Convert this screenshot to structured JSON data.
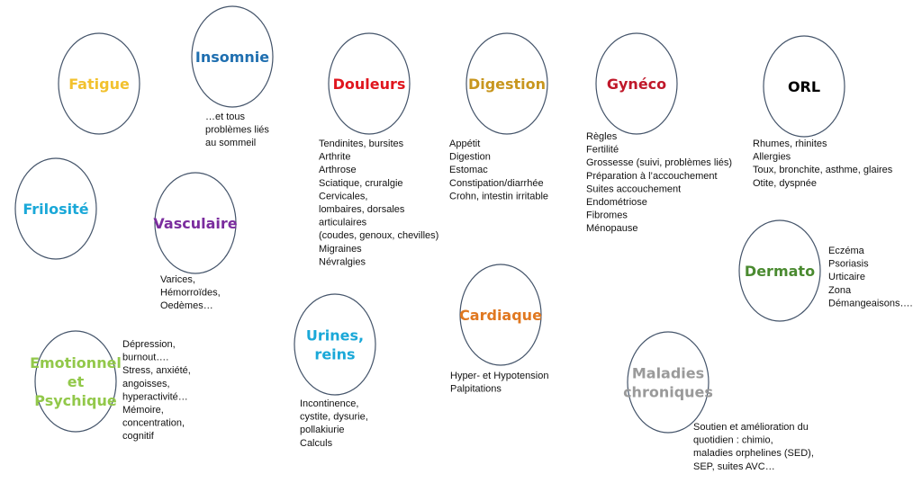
{
  "nodes": [
    {
      "label_lines": [
        "Fatigue"
      ],
      "items": []
    },
    {
      "label_lines": [
        "Insomnie"
      ],
      "items": [
        "…et tous",
        "problèmes liés",
        "au sommeil"
      ]
    },
    {
      "label_lines": [
        "Douleurs"
      ],
      "items": [
        "Tendinites, bursites",
        "Arthrite",
        "Arthrose",
        "Sciatique, cruralgie",
        "Cervicales,",
        "lombaires, dorsales",
        "articulaires",
        "(coudes, genoux, chevilles)",
        "Migraines",
        "Névralgies"
      ]
    },
    {
      "label_lines": [
        "Digestion"
      ],
      "items": [
        "Appétit",
        "Digestion",
        "Estomac",
        "Constipation/diarrhée",
        "Crohn, intestin irritable"
      ]
    },
    {
      "label_lines": [
        "Gynéco"
      ],
      "items": [
        "Règles",
        "Fertilité",
        "Grossesse (suivi, problèmes liés)",
        "Préparation à l’accouchement",
        "Suites accouchement",
        "Endométriose",
        "Fibromes",
        "Ménopause"
      ]
    },
    {
      "label_lines": [
        "ORL"
      ],
      "items": [
        "Rhumes, rhinites",
        "Allergies",
        "Toux, bronchite, asthme, glaires",
        "Otite, dyspnée"
      ]
    },
    {
      "label_lines": [
        "Frilosité"
      ],
      "items": []
    },
    {
      "label_lines": [
        "Vasculaire"
      ],
      "items": [
        "Varices,",
        "Hémorroïdes,",
        "Oedèmes…"
      ]
    },
    {
      "label_lines": [
        "Dermato"
      ],
      "items": [
        "Eczéma",
        "Psoriasis",
        "Urticaire",
        "Zona",
        "Démangeaisons…."
      ]
    },
    {
      "label_lines": [
        "Cardiaque"
      ],
      "items": [
        "Hyper- et Hypotension",
        "Palpitations"
      ]
    },
    {
      "label_lines": [
        "Urines,",
        "reins"
      ],
      "items": [
        "Incontinence,",
        "cystite, dysurie,",
        "pollakiurie",
        "Calculs"
      ]
    },
    {
      "label_lines": [
        "Emotionnel",
        "et",
        "Psychique"
      ],
      "items": [
        "Dépression,",
        "burnout….",
        "Stress, anxiété,",
        "angoisses,",
        "hyperactivité…",
        "Mémoire,",
        "concentration,",
        "cognitif"
      ]
    },
    {
      "label_lines": [
        "Maladies",
        "chroniques"
      ],
      "items": [
        "Soutien et amélioration du",
        "quotidien : chimio,",
        "maladies orphelines (SED),",
        "SEP, suites AVC…"
      ]
    }
  ]
}
